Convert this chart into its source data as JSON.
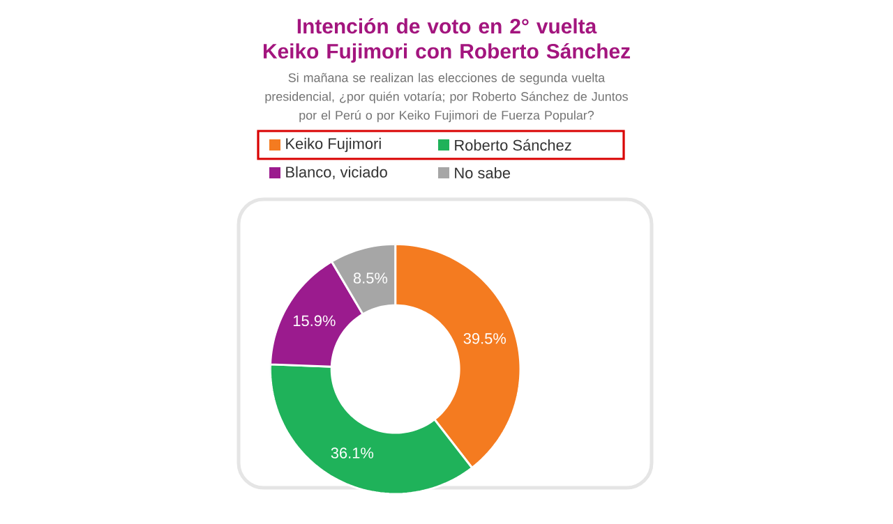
{
  "chart_data": {
    "type": "donut",
    "title": "Intención de voto en 2° vuelta\nKeiko Fujimori con Roberto Sánchez",
    "subtitle": "Si mañana se realizan las elecciones de segunda vuelta\npresidencial, ¿por quién votaría; por Roberto Sánchez de Juntos\npor el Perú o por Keiko Fujimori de Fuerza Popular?",
    "categories": [
      "Keiko Fujimori",
      "Roberto Sánchez",
      "Blanco, viciado",
      "No sabe"
    ],
    "values": [
      39.5,
      36.1,
      15.9,
      8.5
    ],
    "value_labels": [
      "39.5%",
      "36.1%",
      "15.9%",
      "8.5%"
    ],
    "colors": [
      "#f47b20",
      "#1fb25a",
      "#9b1b8e",
      "#a6a6a6"
    ],
    "legend": "top"
  }
}
